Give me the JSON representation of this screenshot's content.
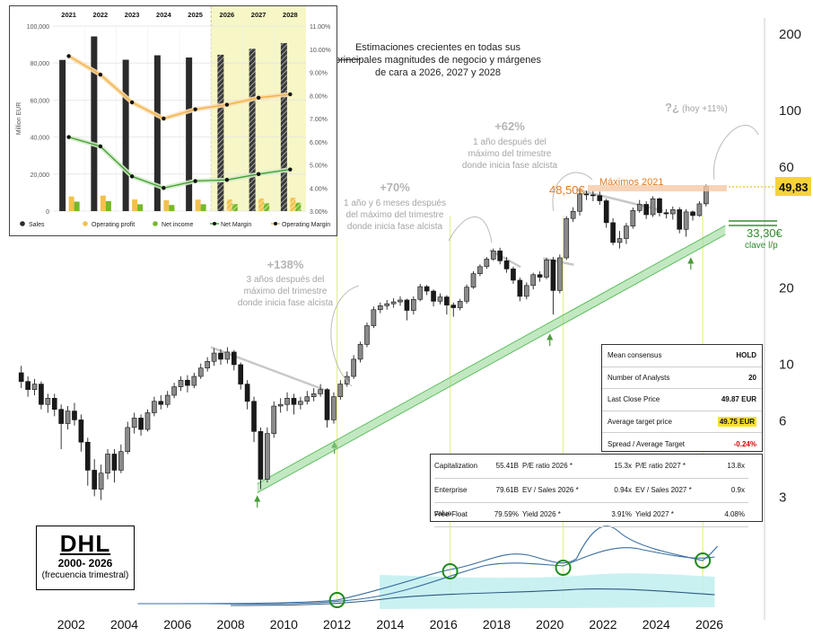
{
  "chart_data": [
    {
      "type": "candlestick",
      "title": "DHL",
      "subtitle": "2000- 2026",
      "note": "(frecuencia trimestral)",
      "x_ticks": [
        "2002",
        "2004",
        "2006",
        "2008",
        "2010",
        "2012",
        "2014",
        "2016",
        "2018",
        "2020",
        "2022",
        "2024",
        "2026"
      ],
      "y_scale": "log",
      "y_ticks": [
        "200",
        "100",
        "60",
        "20",
        "10",
        "6",
        "3"
      ],
      "y_tick_values": [
        200,
        100,
        60,
        20,
        10,
        6,
        3
      ],
      "x_range": [
        2000.0,
        2027.5
      ],
      "y_range": [
        2.6,
        230
      ],
      "last_price_label": "49,83",
      "last_price": 49.83,
      "maximos_label": "Máximos 2021",
      "maximos_value_label": "48,50€",
      "maximos_value": 48.5,
      "support_label": "33,30€",
      "support_sublabel": "clave l/p",
      "support_value": 33.3,
      "candles_quarterly": [
        [
          2000.0,
          9.2,
          8.5,
          9.8,
          8.0
        ],
        [
          2000.25,
          8.5,
          7.9,
          8.9,
          7.4
        ],
        [
          2000.5,
          7.9,
          8.3,
          8.7,
          7.5
        ],
        [
          2000.75,
          8.3,
          6.9,
          8.5,
          6.6
        ],
        [
          2001.0,
          6.9,
          7.3,
          7.6,
          6.4
        ],
        [
          2001.25,
          7.3,
          6.6,
          7.6,
          6.2
        ],
        [
          2001.5,
          6.6,
          5.8,
          6.9,
          4.6
        ],
        [
          2001.75,
          5.8,
          6.5,
          6.8,
          5.5
        ],
        [
          2002.0,
          6.5,
          6.0,
          7.0,
          5.7
        ],
        [
          2002.25,
          6.0,
          4.9,
          6.3,
          4.5
        ],
        [
          2002.5,
          4.9,
          3.8,
          5.1,
          3.3
        ],
        [
          2002.75,
          3.8,
          3.2,
          4.2,
          3.0
        ],
        [
          2003.0,
          3.2,
          3.7,
          4.0,
          2.9
        ],
        [
          2003.25,
          3.7,
          4.4,
          4.6,
          3.5
        ],
        [
          2003.5,
          4.4,
          3.8,
          4.6,
          3.4
        ],
        [
          2003.75,
          3.8,
          4.5,
          4.8,
          3.7
        ],
        [
          2004.0,
          4.5,
          5.6,
          5.9,
          4.4
        ],
        [
          2004.25,
          5.6,
          6.1,
          6.4,
          5.3
        ],
        [
          2004.5,
          6.1,
          5.5,
          6.3,
          5.2
        ],
        [
          2004.75,
          5.5,
          6.4,
          6.6,
          5.4
        ],
        [
          2005.0,
          6.4,
          7.1,
          7.4,
          6.2
        ],
        [
          2005.25,
          7.1,
          6.9,
          7.5,
          6.6
        ],
        [
          2005.5,
          6.9,
          7.5,
          7.8,
          6.7
        ],
        [
          2005.75,
          7.5,
          8.1,
          8.4,
          7.3
        ],
        [
          2006.0,
          8.1,
          8.6,
          8.9,
          7.8
        ],
        [
          2006.25,
          8.6,
          8.2,
          9.0,
          7.7
        ],
        [
          2006.5,
          8.2,
          8.9,
          9.2,
          8.0
        ],
        [
          2006.75,
          8.9,
          9.6,
          10.0,
          8.7
        ],
        [
          2007.0,
          9.6,
          10.2,
          10.6,
          9.3
        ],
        [
          2007.25,
          10.2,
          11.0,
          11.5,
          9.8
        ],
        [
          2007.5,
          11.0,
          10.4,
          11.4,
          9.9
        ],
        [
          2007.75,
          10.4,
          11.1,
          11.6,
          10.0
        ],
        [
          2008.0,
          11.1,
          9.9,
          11.3,
          9.4
        ],
        [
          2008.25,
          9.9,
          8.3,
          10.1,
          7.9
        ],
        [
          2008.5,
          8.3,
          7.1,
          8.6,
          6.6
        ],
        [
          2008.75,
          7.1,
          5.4,
          7.4,
          4.9
        ],
        [
          2009.0,
          5.4,
          3.5,
          5.6,
          3.2
        ],
        [
          2009.25,
          3.5,
          5.3,
          5.6,
          3.4
        ],
        [
          2009.5,
          5.3,
          6.8,
          7.1,
          5.1
        ],
        [
          2009.75,
          6.8,
          6.9,
          7.3,
          6.4
        ],
        [
          2010.0,
          6.9,
          7.3,
          7.7,
          6.5
        ],
        [
          2010.25,
          7.3,
          6.9,
          7.6,
          6.3
        ],
        [
          2010.5,
          6.9,
          7.1,
          7.4,
          6.6
        ],
        [
          2010.75,
          7.1,
          7.4,
          7.8,
          6.9
        ],
        [
          2011.0,
          7.4,
          7.6,
          8.0,
          7.1
        ],
        [
          2011.25,
          7.6,
          7.9,
          8.3,
          7.4
        ],
        [
          2011.5,
          7.9,
          6.0,
          8.0,
          5.6
        ],
        [
          2011.75,
          6.0,
          7.4,
          7.7,
          5.8
        ],
        [
          2012.0,
          7.4,
          8.3,
          8.6,
          7.2
        ],
        [
          2012.25,
          8.3,
          8.9,
          9.3,
          8.1
        ],
        [
          2012.5,
          8.9,
          10.4,
          10.8,
          8.7
        ],
        [
          2012.75,
          10.4,
          11.9,
          12.2,
          10.1
        ],
        [
          2013.0,
          11.9,
          14.1,
          14.5,
          11.6
        ],
        [
          2013.25,
          14.1,
          16.3,
          16.8,
          13.8
        ],
        [
          2013.5,
          16.3,
          16.9,
          17.4,
          15.8
        ],
        [
          2013.75,
          16.9,
          17.2,
          17.8,
          16.3
        ],
        [
          2014.0,
          17.2,
          17.5,
          18.1,
          16.6
        ],
        [
          2014.25,
          17.5,
          17.8,
          18.4,
          16.9
        ],
        [
          2014.5,
          17.8,
          16.2,
          18.0,
          14.8
        ],
        [
          2014.75,
          16.2,
          17.9,
          18.4,
          15.6
        ],
        [
          2015.0,
          17.9,
          20.1,
          20.6,
          17.6
        ],
        [
          2015.25,
          20.1,
          19.3,
          20.4,
          18.6
        ],
        [
          2015.5,
          19.3,
          17.6,
          19.6,
          16.8
        ],
        [
          2015.75,
          17.6,
          18.3,
          18.9,
          17.1
        ],
        [
          2016.0,
          18.3,
          17.0,
          18.6,
          15.6
        ],
        [
          2016.25,
          17.0,
          16.6,
          17.4,
          15.3
        ],
        [
          2016.5,
          16.6,
          17.6,
          18.0,
          16.2
        ],
        [
          2016.75,
          17.6,
          20.0,
          20.5,
          17.2
        ],
        [
          2017.0,
          20.0,
          22.6,
          23.1,
          19.7
        ],
        [
          2017.25,
          22.6,
          24.1,
          24.6,
          22.1
        ],
        [
          2017.5,
          24.1,
          25.8,
          26.3,
          23.6
        ],
        [
          2017.75,
          25.8,
          27.8,
          28.4,
          25.4
        ],
        [
          2018.0,
          27.8,
          25.4,
          28.6,
          24.6
        ],
        [
          2018.25,
          25.4,
          23.6,
          26.3,
          22.8
        ],
        [
          2018.5,
          23.6,
          21.3,
          24.1,
          20.6
        ],
        [
          2018.75,
          21.3,
          18.4,
          21.8,
          17.6
        ],
        [
          2019.0,
          18.4,
          20.3,
          20.9,
          17.9
        ],
        [
          2019.25,
          20.3,
          22.4,
          22.8,
          19.6
        ],
        [
          2019.5,
          22.4,
          21.9,
          23.1,
          21.0
        ],
        [
          2019.75,
          21.9,
          25.6,
          26.1,
          21.5
        ],
        [
          2020.0,
          25.6,
          19.4,
          26.3,
          15.6
        ],
        [
          2020.25,
          19.4,
          26.1,
          26.9,
          18.9
        ],
        [
          2020.5,
          26.1,
          37.3,
          38.1,
          25.6
        ],
        [
          2020.75,
          37.3,
          39.8,
          41.3,
          36.1
        ],
        [
          2021.0,
          39.8,
          46.6,
          48.5,
          38.3
        ],
        [
          2021.25,
          46.6,
          46.2,
          48.0,
          44.1
        ],
        [
          2021.5,
          46.2,
          45.9,
          48.1,
          43.6
        ],
        [
          2021.75,
          45.9,
          43.8,
          47.6,
          42.2
        ],
        [
          2022.0,
          43.8,
          35.9,
          44.6,
          34.3
        ],
        [
          2022.25,
          35.9,
          30.0,
          37.4,
          29.3
        ],
        [
          2022.5,
          30.0,
          31.1,
          33.3,
          28.4
        ],
        [
          2022.75,
          31.1,
          34.8,
          35.8,
          29.6
        ],
        [
          2023.0,
          34.8,
          40.1,
          41.2,
          34.0
        ],
        [
          2023.25,
          40.1,
          42.4,
          44.1,
          39.3
        ],
        [
          2023.5,
          42.4,
          38.6,
          43.6,
          37.1
        ],
        [
          2023.75,
          38.6,
          44.6,
          45.6,
          37.8
        ],
        [
          2024.0,
          44.6,
          39.3,
          45.1,
          38.0
        ],
        [
          2024.25,
          39.3,
          38.9,
          40.6,
          37.3
        ],
        [
          2024.5,
          38.9,
          40.4,
          41.6,
          36.9
        ],
        [
          2024.75,
          40.4,
          33.8,
          41.3,
          32.6
        ],
        [
          2025.0,
          33.8,
          39.6,
          40.6,
          31.6
        ],
        [
          2025.25,
          39.6,
          38.3,
          40.1,
          36.6
        ],
        [
          2025.5,
          38.3,
          42.6,
          43.6,
          37.9
        ],
        [
          2025.75,
          42.6,
          49.83,
          50.8,
          41.6
        ]
      ],
      "annotations": [
        {
          "pct": "+138%",
          "text": "3 años después del máximo del trimestre donde inicia fase alcista"
        },
        {
          "pct": "+70%",
          "text": "1 año y 6 meses después del máximo del trimestre donde inicia fase alcista"
        },
        {
          "pct": "+62%",
          "text": "1 año después del máximo del trimestre donde inicia fase alcista"
        },
        {
          "pct": "?¿",
          "text": "(hoy +11%)"
        }
      ],
      "cycle_markers_x": [
        2012.0,
        2016.25,
        2020.5,
        2025.75
      ]
    },
    {
      "type": "bar+line",
      "years": [
        "2021",
        "2022",
        "2023",
        "2024",
        "2025",
        "2026",
        "2027",
        "2028"
      ],
      "estimated_years": [
        "2026",
        "2027",
        "2028"
      ],
      "ylabel": "Million EUR",
      "y_ticks_left": [
        "100,000",
        "80,000",
        "60,000",
        "40,000",
        "20,000",
        "0"
      ],
      "y_ticks_right": [
        "11.00%",
        "10.00%",
        "9.00%",
        "8.00%",
        "7.00%",
        "6.00%",
        "5.00%",
        "4.00%",
        "3.00%"
      ],
      "ylim_left": [
        0,
        100000
      ],
      "ylim_right": [
        3.0,
        11.0
      ],
      "series": [
        {
          "name": "Sales",
          "values": [
            81700,
            94400,
            81800,
            84200,
            83000,
            84500,
            87700,
            90800
          ],
          "color": "#2b2b2b"
        },
        {
          "name": "Operating profit",
          "values": [
            7900,
            8400,
            6300,
            5900,
            6200,
            6300,
            6800,
            7300
          ],
          "color": "#f2c14e"
        },
        {
          "name": "Net income",
          "values": [
            5100,
            5400,
            3700,
            3300,
            3700,
            3800,
            4200,
            4500
          ],
          "color": "#76b82a"
        },
        {
          "name": "Net Margin",
          "values": [
            6.2,
            5.8,
            4.5,
            4.0,
            4.3,
            4.35,
            4.6,
            4.8
          ],
          "color": "#3f9d2f",
          "axis": "right"
        },
        {
          "name": "Operating Margin",
          "values": [
            9.7,
            8.9,
            7.7,
            7.0,
            7.4,
            7.6,
            7.9,
            8.05
          ],
          "color": "#f0b040",
          "axis": "right"
        }
      ]
    }
  ],
  "inset_note": "Estimaciones crecientes en todas sus principales magnitudes de negocio y márgenes de cara a 2026, 2027 y 2028",
  "consensus": {
    "rows": [
      {
        "label": "Mean consensus",
        "value": "HOLD"
      },
      {
        "label": "Number of Analysts",
        "value": "20"
      },
      {
        "label": "Last Close Price",
        "value": "49.87 EUR"
      },
      {
        "label": "Average target price",
        "value": "49.75 EUR"
      },
      {
        "label": "Spread / Average Target",
        "value": "-0.24%"
      }
    ]
  },
  "valuation": {
    "rows": [
      [
        "Capitalization",
        "55.41B",
        "P/E ratio 2026 *",
        "15.3x",
        "P/E ratio 2027 *",
        "13.8x"
      ],
      [
        "Enterprise value",
        "79.61B",
        "EV / Sales 2026 *",
        "0.94x",
        "EV / Sales 2027 *",
        "0.9x"
      ],
      [
        "Free-Float",
        "79.59%",
        "Yield 2026 *",
        "3.91%",
        "Yield 2027 *",
        "4.08%"
      ]
    ]
  },
  "colors": {
    "bull_candle": "#8a8a8a",
    "bear_candle": "#1a1a1a",
    "trend_channel": "#8fd58f",
    "estimate_band": "#f7f6c6",
    "oscillator_band": "#bfeff0",
    "maximos": "#e07b20",
    "support": "#2e8b2e",
    "last_price_bg": "#f7d23a"
  }
}
